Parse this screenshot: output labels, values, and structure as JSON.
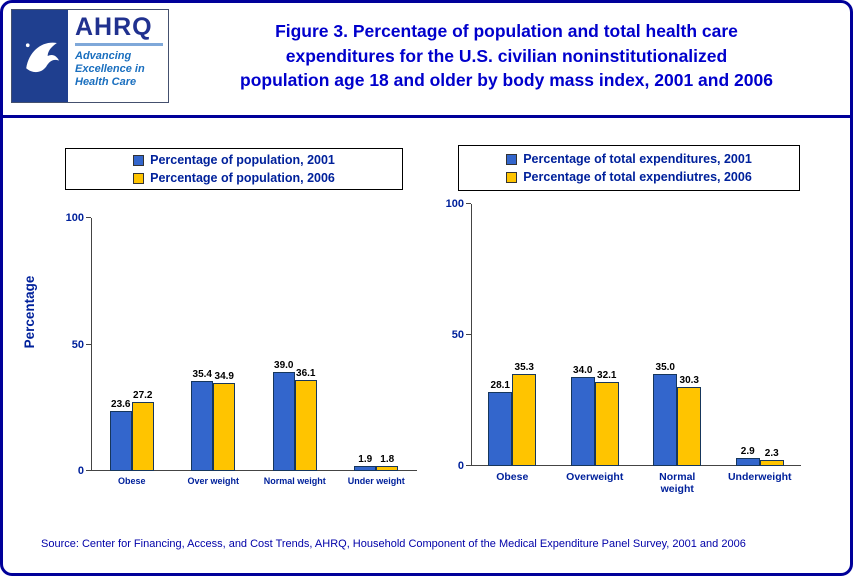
{
  "page": {
    "title_line1": "Figure 3. Percentage of population and total health care",
    "title_line2": "expenditures for the U.S. civilian noninstitutionalized",
    "title_line3": "population age 18 and older by body mass index, 2001 and 2006",
    "source": "Source: Center for Financing, Access, and Cost Trends, AHRQ, Household Component of the Medical Expenditure Panel Survey, 2001 and 2006"
  },
  "logo": {
    "ahrq_acronym": "AHRQ",
    "tagline_line1": "Advancing",
    "tagline_line2": "Excellence in",
    "tagline_line3": "Health Care",
    "hhs_icon": "hhs-eagle-icon"
  },
  "colors": {
    "series_2001": "#3366CC",
    "series_2006": "#FFC400",
    "bar_border": "#16365C",
    "accent_navy": "#00219B",
    "title_blue": "#0000CC",
    "page_border": "#000099"
  },
  "chart_data": [
    {
      "type": "bar",
      "title": "",
      "categories": [
        "Obese",
        "Over weight",
        "Normal weight",
        "Under weight"
      ],
      "series": [
        {
          "name": "Percentage of population, 2001",
          "color_key": "series_2001",
          "values": [
            23.6,
            35.4,
            39.0,
            1.9
          ]
        },
        {
          "name": "Percentage of population, 2006",
          "color_key": "series_2006",
          "values": [
            27.2,
            34.9,
            36.1,
            1.8
          ]
        }
      ],
      "xlabel": "",
      "ylabel": "Percentage",
      "ylim": [
        0,
        100
      ],
      "yticks": [
        0,
        50,
        100
      ],
      "grid": false,
      "legend_position": "top"
    },
    {
      "type": "bar",
      "title": "",
      "categories": [
        "Obese",
        "Overweight",
        "Normal weight",
        "Underweight"
      ],
      "series": [
        {
          "name": "Percentage of total expenditures, 2001",
          "color_key": "series_2001",
          "values": [
            28.1,
            34.0,
            35.0,
            2.9
          ]
        },
        {
          "name": "Percentage of total expendiutres, 2006",
          "color_key": "series_2006",
          "values": [
            35.3,
            32.1,
            30.3,
            2.3
          ]
        }
      ],
      "xlabel": "",
      "ylabel": "",
      "ylim": [
        0,
        100
      ],
      "yticks": [
        0,
        50,
        100
      ],
      "grid": false,
      "legend_position": "top"
    }
  ]
}
